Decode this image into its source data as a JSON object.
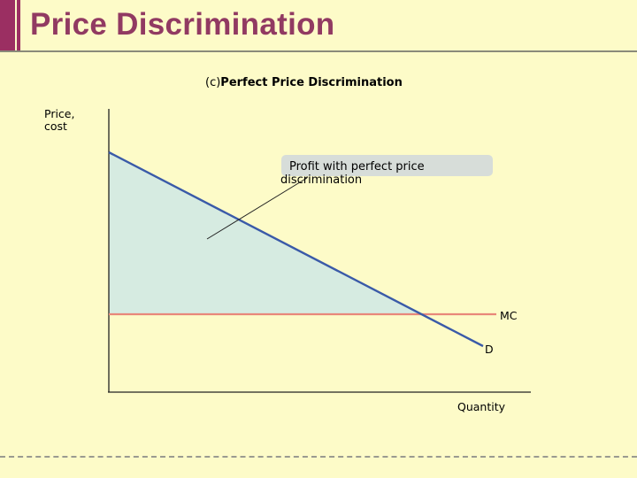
{
  "title": "Price Discrimination",
  "subtitle": {
    "prefix": "(c)",
    "text": "Perfect Price Discrimination"
  },
  "axes": {
    "y_label": "Price, cost",
    "x_label": "Quantity"
  },
  "curves": {
    "mc_label": "MC",
    "demand_label": "D"
  },
  "callout": "Profit with perfect price discrimination",
  "colors": {
    "brand": "#913a62",
    "background": "#fdfbc8",
    "demand_line": "#3a5aa8",
    "mc_line": "#e8877a",
    "profit_fill": "#d6ebe1"
  }
}
